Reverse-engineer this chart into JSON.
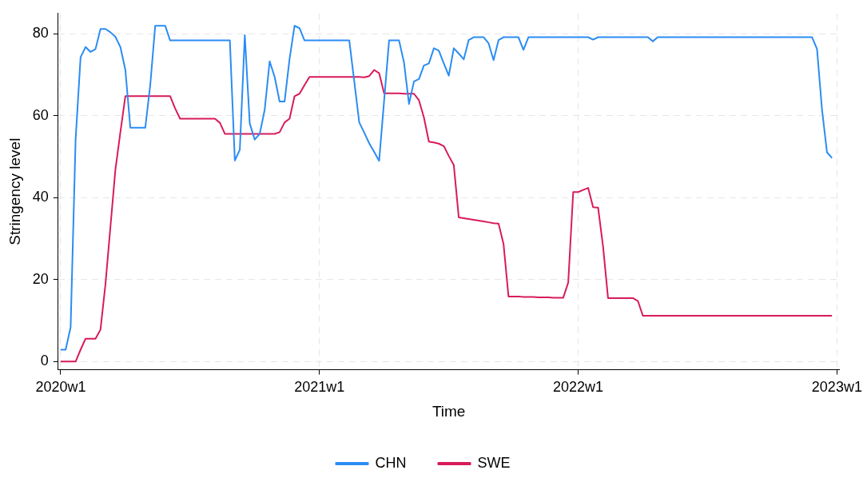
{
  "chart_data": {
    "type": "line",
    "xlabel": "Time",
    "ylabel": "Stringency level",
    "categories": [
      "2020w1",
      null,
      null,
      null,
      null,
      null,
      null,
      null,
      null,
      null,
      null,
      null,
      null,
      null,
      null,
      null,
      null,
      null,
      null,
      null,
      null,
      null,
      null,
      null,
      null,
      null,
      null,
      null,
      null,
      null,
      null,
      null,
      null,
      null,
      null,
      null,
      null,
      null,
      null,
      null,
      null,
      null,
      null,
      null,
      null,
      null,
      null,
      null,
      null,
      null,
      null,
      null,
      "2021w1",
      null,
      null,
      null,
      null,
      null,
      null,
      null,
      null,
      null,
      null,
      null,
      null,
      null,
      null,
      null,
      null,
      null,
      null,
      null,
      null,
      null,
      null,
      null,
      null,
      null,
      null,
      null,
      null,
      null,
      null,
      null,
      null,
      null,
      null,
      null,
      null,
      null,
      null,
      null,
      null,
      null,
      null,
      null,
      null,
      null,
      null,
      null,
      null,
      null,
      null,
      null,
      "2022w1",
      null,
      null,
      null,
      null,
      null,
      null,
      null,
      null,
      null,
      null,
      null,
      null,
      null,
      null,
      null,
      null,
      null,
      null,
      null,
      null,
      null,
      null,
      null,
      null,
      null,
      null,
      null,
      null,
      null,
      null,
      null,
      null,
      null,
      null,
      null,
      null,
      null,
      null,
      null,
      null,
      null,
      null,
      null,
      null,
      null,
      null,
      null,
      null,
      null,
      null,
      null,
      "2023w1"
    ],
    "ylim": [
      -2,
      85
    ],
    "yticks": [
      0,
      20,
      40,
      60,
      80
    ],
    "grid": true,
    "legend": "bottom",
    "marker": "none",
    "line_style": "solid",
    "series": [
      {
        "name": "CHN",
        "color": "#2a8cf4",
        "values": [
          2.9,
          2.9,
          8.4,
          54.2,
          74.3,
          76.8,
          75.6,
          76.3,
          81.2,
          81.2,
          80.4,
          79.3,
          76.8,
          71.2,
          57.1,
          57.1,
          57.1,
          57.1,
          67.5,
          82.0,
          82.0,
          82.0,
          78.4,
          78.4,
          78.4,
          78.4,
          78.4,
          78.4,
          78.4,
          78.4,
          78.4,
          78.4,
          78.4,
          78.4,
          78.4,
          49.1,
          51.7,
          79.7,
          58.1,
          54.2,
          55.6,
          61.5,
          73.3,
          69.5,
          63.5,
          63.5,
          73.9,
          82.0,
          81.4,
          78.4,
          78.4,
          78.4,
          78.4,
          78.4,
          78.4,
          78.4,
          78.4,
          78.4,
          78.4,
          68.4,
          58.4,
          55.9,
          53.3,
          51.2,
          49.0,
          63.7,
          78.4,
          78.4,
          78.4,
          73.0,
          62.9,
          68.4,
          69.0,
          72.3,
          72.8,
          76.5,
          75.9,
          72.8,
          69.8,
          76.5,
          75.2,
          73.8,
          78.5,
          79.2,
          79.2,
          79.2,
          77.7,
          73.6,
          78.5,
          79.2,
          79.2,
          79.2,
          79.2,
          76.1,
          79.2,
          79.2,
          79.2,
          79.2,
          79.2,
          79.2,
          79.2,
          79.2,
          79.2,
          79.2,
          79.2,
          79.2,
          79.2,
          78.6,
          79.2,
          79.2,
          79.2,
          79.2,
          79.2,
          79.2,
          79.2,
          79.2,
          79.2,
          79.2,
          79.2,
          78.2,
          79.2,
          79.2,
          79.2,
          79.2,
          79.2,
          79.2,
          79.2,
          79.2,
          79.2,
          79.2,
          79.2,
          79.2,
          79.2,
          79.2,
          79.2,
          79.2,
          79.2,
          79.2,
          79.2,
          79.2,
          79.2,
          79.2,
          79.2,
          79.2,
          79.2,
          79.2,
          79.2,
          79.2,
          79.2,
          79.2,
          79.2,
          79.2,
          76.3,
          61.5,
          51.1,
          49.7,
          null
        ]
      },
      {
        "name": "SWE",
        "color": "#d81b5a",
        "values": [
          0,
          0,
          0,
          0,
          2.9,
          5.6,
          5.6,
          5.6,
          7.8,
          18.9,
          32.9,
          46.9,
          56.0,
          64.8,
          64.8,
          64.8,
          64.8,
          64.8,
          64.8,
          64.8,
          64.8,
          64.8,
          64.8,
          61.8,
          59.3,
          59.3,
          59.3,
          59.3,
          59.3,
          59.3,
          59.3,
          59.3,
          58.3,
          55.6,
          55.6,
          55.6,
          55.6,
          55.6,
          55.6,
          55.6,
          55.6,
          55.6,
          55.6,
          55.6,
          56.0,
          58.4,
          59.3,
          64.8,
          65.4,
          67.5,
          69.5,
          69.5,
          69.5,
          69.5,
          69.5,
          69.5,
          69.5,
          69.5,
          69.5,
          69.5,
          69.5,
          69.4,
          69.7,
          71.2,
          70.4,
          65.5,
          65.5,
          65.5,
          65.5,
          65.4,
          65.4,
          65.4,
          63.8,
          59.6,
          53.7,
          53.5,
          53.2,
          52.6,
          50.2,
          48.0,
          35.2,
          35.0,
          34.8,
          34.6,
          34.4,
          34.2,
          34.0,
          33.8,
          33.7,
          28.7,
          15.9,
          15.9,
          15.9,
          15.8,
          15.8,
          15.8,
          15.7,
          15.7,
          15.7,
          15.6,
          15.6,
          15.6,
          19.3,
          41.4,
          41.4,
          41.9,
          42.4,
          37.7,
          37.6,
          28.1,
          15.5,
          15.5,
          15.5,
          15.5,
          15.5,
          15.5,
          14.8,
          11.2,
          11.2,
          11.2,
          11.2,
          11.2,
          11.2,
          11.2,
          11.2,
          11.2,
          11.2,
          11.2,
          11.2,
          11.2,
          11.2,
          11.2,
          11.2,
          11.2,
          11.2,
          11.2,
          11.2,
          11.2,
          11.2,
          11.2,
          11.2,
          11.2,
          11.2,
          11.2,
          11.2,
          11.2,
          11.2,
          11.2,
          11.2,
          11.2,
          11.2,
          11.2,
          11.2,
          11.2,
          11.2,
          11.2,
          null
        ]
      }
    ]
  }
}
